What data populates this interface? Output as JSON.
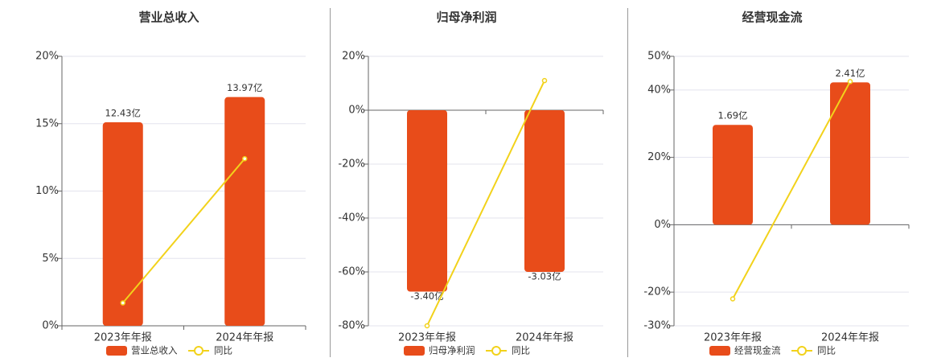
{
  "chart_data": [
    {
      "type": "bar",
      "title": "营业总收入",
      "categories": [
        "2023年年报",
        "2024年年报"
      ],
      "series": [
        {
          "name": "营业总收入",
          "color": "#e84c1a",
          "axis": "y2",
          "values": [
            12.43,
            13.97
          ],
          "value_labels": [
            "12.43亿",
            "13.97亿"
          ]
        },
        {
          "name": "同比",
          "color": "#f2d21b",
          "type": "line",
          "values": [
            1.7,
            12.4
          ]
        }
      ],
      "ylim": [
        0,
        20
      ],
      "yticks": [
        {
          "value": 0,
          "label": "0%"
        },
        {
          "value": 5,
          "label": "5%"
        },
        {
          "value": 10,
          "label": "10%"
        },
        {
          "value": 15,
          "label": "15%"
        },
        {
          "value": 20,
          "label": "20%"
        }
      ],
      "y2lim": [
        0,
        16.46
      ],
      "grid": true
    },
    {
      "type": "bar",
      "title": "归母净利润",
      "categories": [
        "2023年年报",
        "2024年年报"
      ],
      "series": [
        {
          "name": "归母净利润",
          "color": "#e84c1a",
          "axis": "y2",
          "values": [
            -3.4,
            -3.03
          ],
          "value_labels": [
            "-3.40亿",
            "-3.03亿"
          ]
        },
        {
          "name": "同比",
          "color": "#f2d21b",
          "type": "line",
          "values": [
            -80,
            11
          ]
        }
      ],
      "ylim": [
        -80,
        20
      ],
      "yticks": [
        {
          "value": -80,
          "label": "-80%"
        },
        {
          "value": -60,
          "label": "-60%"
        },
        {
          "value": -40,
          "label": "-40%"
        },
        {
          "value": -20,
          "label": "-20%"
        },
        {
          "value": 0,
          "label": "0%"
        },
        {
          "value": 20,
          "label": "20%"
        }
      ],
      "y2lim": [
        -4.04,
        1.01
      ],
      "grid": true
    },
    {
      "type": "bar",
      "title": "经营现金流",
      "categories": [
        "2023年年报",
        "2024年年报"
      ],
      "series": [
        {
          "name": "经营现金流",
          "color": "#e84c1a",
          "axis": "y2",
          "values": [
            1.69,
            2.41
          ],
          "value_labels": [
            "1.69亿",
            "2.41亿"
          ]
        },
        {
          "name": "同比",
          "color": "#f2d21b",
          "type": "line",
          "values": [
            -22,
            42.5
          ]
        }
      ],
      "ylim": [
        -30,
        50
      ],
      "yticks": [
        {
          "value": -30,
          "label": "-30%"
        },
        {
          "value": -20,
          "label": "-20%"
        },
        {
          "value": 0,
          "label": "0%"
        },
        {
          "value": 20,
          "label": "20%"
        },
        {
          "value": 40,
          "label": "40%"
        },
        {
          "value": 50,
          "label": "50%"
        }
      ],
      "y2lim": [
        -1.71,
        2.85
      ],
      "grid": true
    }
  ]
}
